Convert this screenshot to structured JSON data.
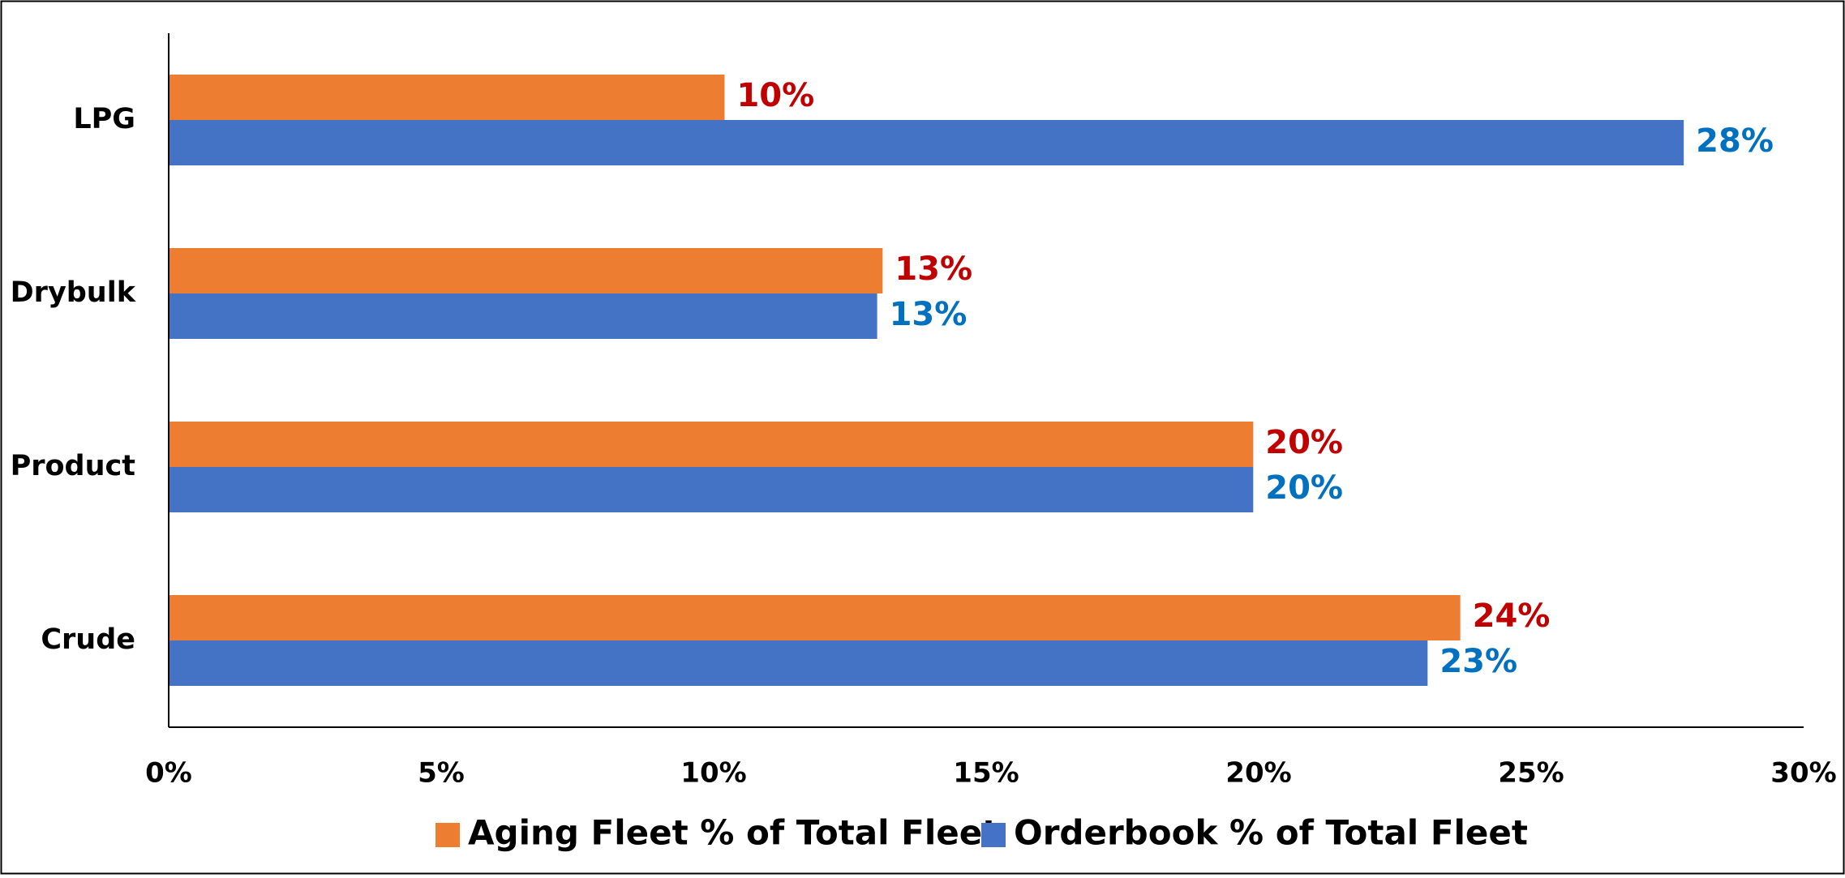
{
  "chart_data": {
    "type": "hbar",
    "categories": [
      "LPG",
      "Drybulk",
      "Product",
      "Crude"
    ],
    "series": [
      {
        "name": "Aging Fleet % of Total Fleet",
        "color": "#ed7d31",
        "label_color": "#c00000",
        "values": [
          10.2,
          13.1,
          19.9,
          23.7
        ],
        "value_labels": [
          "10%",
          "13%",
          "20%",
          "24%"
        ]
      },
      {
        "name": "Orderbook % of Total Fleet",
        "color": "#4472c4",
        "label_color": "#0070c0",
        "values": [
          27.8,
          13.0,
          19.9,
          23.1
        ],
        "value_labels": [
          "28%",
          "13%",
          "20%",
          "23%"
        ]
      }
    ],
    "xlim": [
      0,
      30
    ],
    "xticks": [
      {
        "value": 0,
        "label": "0%"
      },
      {
        "value": 5,
        "label": "5%"
      },
      {
        "value": 10,
        "label": "10%"
      },
      {
        "value": 15,
        "label": "15%"
      },
      {
        "value": 20,
        "label": "20%"
      },
      {
        "value": 25,
        "label": "25%"
      },
      {
        "value": 30,
        "label": "30%"
      }
    ],
    "grid": false,
    "legend": "bottom"
  }
}
